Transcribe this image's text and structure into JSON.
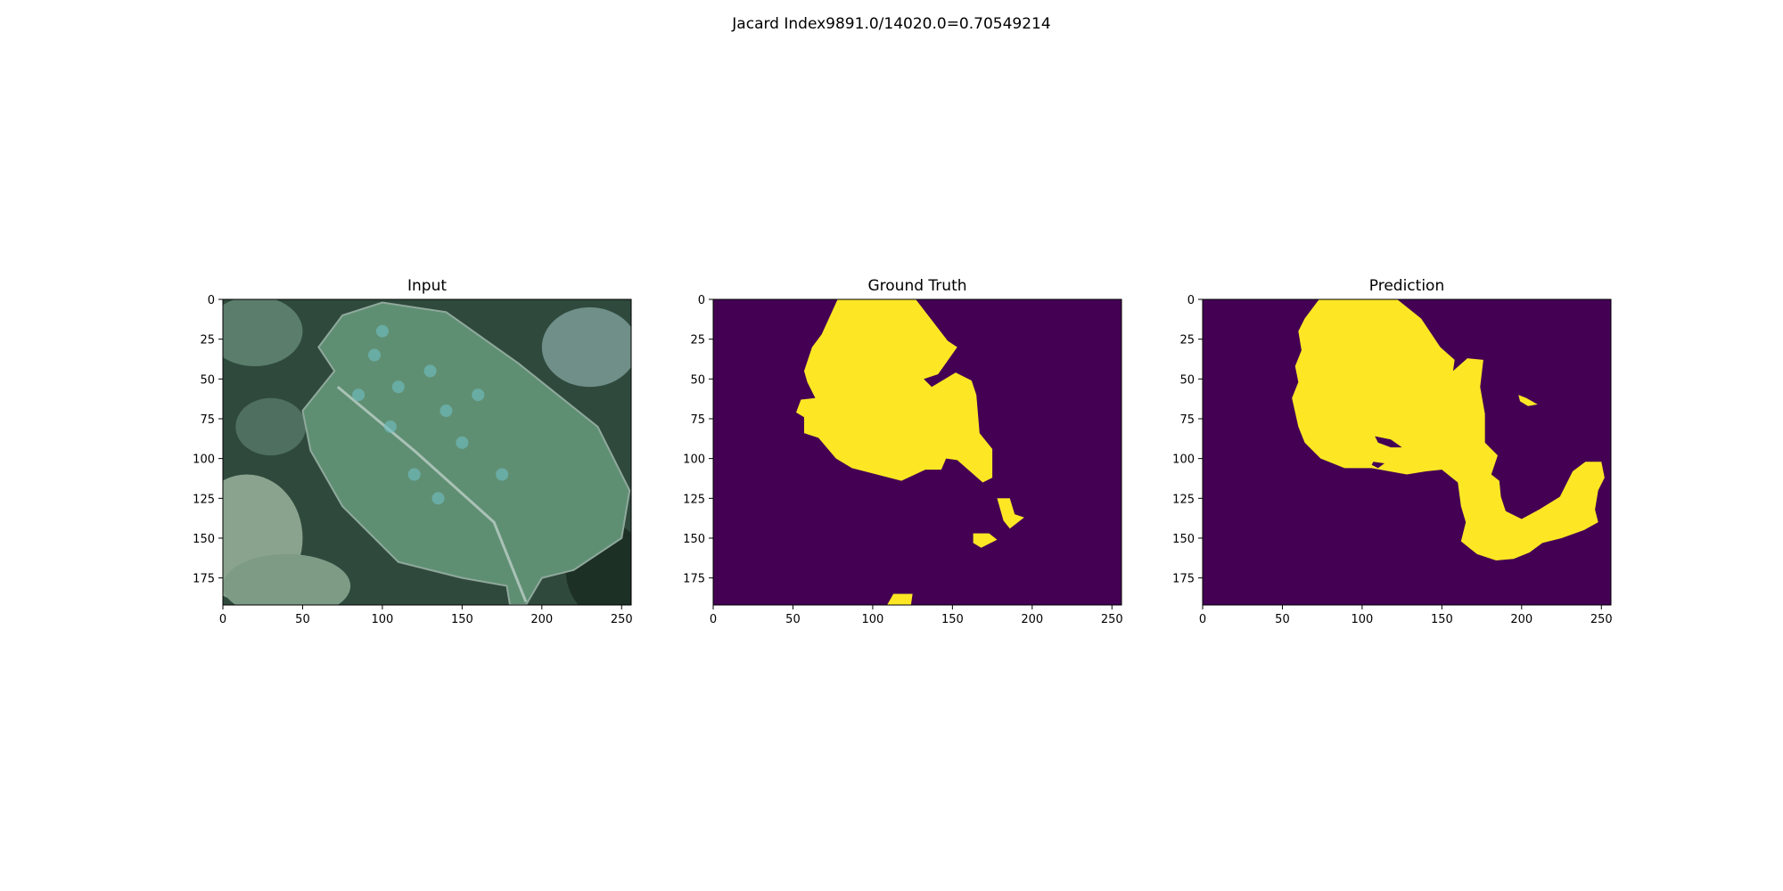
{
  "figure": {
    "suptitle": "Jacard Index9891.0/14020.0=0.70549214"
  },
  "colors": {
    "background_class": "#440154",
    "foreground_class": "#fde725",
    "axes_frame": "#000000"
  },
  "chart_data": [
    {
      "type": "image",
      "title": "Input",
      "content": "photo of a green leaf with bluish speckles",
      "xlim": [
        0,
        256
      ],
      "ylim": [
        192,
        0
      ],
      "xticks": [
        0,
        50,
        100,
        150,
        200,
        250
      ],
      "yticks": [
        0,
        25,
        50,
        75,
        100,
        125,
        150,
        175
      ]
    },
    {
      "type": "heatmap",
      "title": "Ground Truth",
      "content": "binary segmentation mask",
      "xlim": [
        0,
        256
      ],
      "ylim": [
        192,
        0
      ],
      "xticks": [
        0,
        50,
        100,
        150,
        200,
        250
      ],
      "yticks": [
        0,
        25,
        50,
        75,
        100,
        125,
        150,
        175
      ],
      "regions": [
        {
          "polygon": [
            [
              78,
              0
            ],
            [
              127,
              0
            ],
            [
              147,
              26
            ],
            [
              153,
              30
            ],
            [
              141,
              47
            ],
            [
              132,
              50
            ],
            [
              137,
              55
            ],
            [
              152,
              46
            ],
            [
              162,
              51
            ],
            [
              165,
              60
            ],
            [
              167,
              84
            ],
            [
              175,
              94
            ],
            [
              175,
              112
            ],
            [
              169,
              115
            ],
            [
              153,
              101
            ],
            [
              146,
              100
            ],
            [
              143,
              107
            ],
            [
              133,
              107
            ],
            [
              118,
              114
            ],
            [
              87,
              106
            ],
            [
              77,
              100
            ],
            [
              66,
              87
            ],
            [
              57,
              84
            ],
            [
              57,
              74
            ],
            [
              52,
              71
            ],
            [
              55,
              63
            ],
            [
              64,
              62
            ],
            [
              59,
              52
            ],
            [
              57,
              45
            ],
            [
              62,
              30
            ],
            [
              68,
              22
            ]
          ]
        },
        {
          "polygon": [
            [
              178,
              125
            ],
            [
              186,
              125
            ],
            [
              189,
              135
            ],
            [
              195,
              137
            ],
            [
              186,
              144
            ],
            [
              182,
              139
            ]
          ]
        },
        {
          "polygon": [
            [
              163,
              147
            ],
            [
              173,
              147
            ],
            [
              178,
              151
            ],
            [
              168,
              156
            ],
            [
              163,
              153
            ]
          ]
        },
        {
          "polygon": [
            [
              113,
              185
            ],
            [
              125,
              185
            ],
            [
              124,
              192
            ],
            [
              109,
              192
            ]
          ]
        }
      ]
    },
    {
      "type": "heatmap",
      "title": "Prediction",
      "content": "binary segmentation mask",
      "xlim": [
        0,
        256
      ],
      "ylim": [
        192,
        0
      ],
      "xticks": [
        0,
        50,
        100,
        150,
        200,
        250
      ],
      "yticks": [
        0,
        25,
        50,
        75,
        100,
        125,
        150,
        175
      ],
      "regions": [
        {
          "polygon": [
            [
              73,
              0
            ],
            [
              122,
              0
            ],
            [
              137,
              12
            ],
            [
              149,
              30
            ],
            [
              158,
              38
            ],
            [
              157,
              45
            ],
            [
              166,
              37
            ],
            [
              176,
              38
            ],
            [
              174,
              55
            ],
            [
              177,
              72
            ],
            [
              177,
              90
            ],
            [
              185,
              98
            ],
            [
              181,
              110
            ],
            [
              186,
              114
            ],
            [
              187,
              124
            ],
            [
              190,
              133
            ],
            [
              200,
              138
            ],
            [
              211,
              132
            ],
            [
              224,
              124
            ],
            [
              232,
              108
            ],
            [
              240,
              102
            ],
            [
              250,
              102
            ],
            [
              252,
              112
            ],
            [
              248,
              120
            ],
            [
              246,
              132
            ],
            [
              248,
              140
            ],
            [
              239,
              145
            ],
            [
              225,
              150
            ],
            [
              213,
              153
            ],
            [
              205,
              159
            ],
            [
              195,
              163
            ],
            [
              184,
              164
            ],
            [
              172,
              160
            ],
            [
              162,
              152
            ],
            [
              165,
              140
            ],
            [
              162,
              130
            ],
            [
              160,
              115
            ],
            [
              150,
              107
            ],
            [
              140,
              108
            ],
            [
              128,
              110
            ],
            [
              106,
              106
            ],
            [
              89,
              106
            ],
            [
              74,
              100
            ],
            [
              64,
              90
            ],
            [
              60,
              80
            ],
            [
              56,
              62
            ],
            [
              60,
              52
            ],
            [
              58,
              42
            ],
            [
              62,
              32
            ],
            [
              60,
              20
            ],
            [
              64,
              12
            ]
          ]
        },
        {
          "polygon": [
            [
              198,
              60
            ],
            [
              203,
              62
            ],
            [
              210,
              66
            ],
            [
              204,
              67
            ],
            [
              199,
              64
            ]
          ]
        }
      ],
      "holes": [
        {
          "polygon": [
            [
              108,
              86
            ],
            [
              118,
              88
            ],
            [
              125,
              93
            ],
            [
              118,
              93
            ],
            [
              110,
              90
            ]
          ]
        },
        {
          "polygon": [
            [
              107,
              102
            ],
            [
              114,
              103
            ],
            [
              110,
              106
            ],
            [
              106,
              104
            ]
          ]
        }
      ]
    }
  ]
}
